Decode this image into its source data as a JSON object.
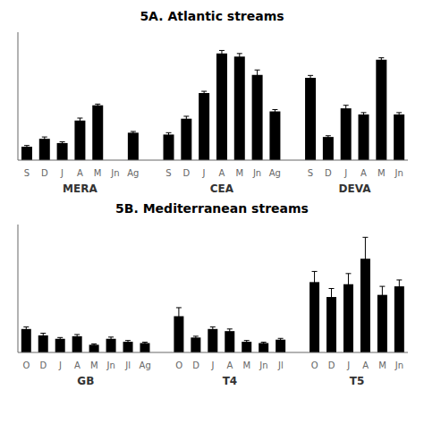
{
  "chart_data": [
    {
      "type": "bar",
      "title": "5A. Atlantic streams",
      "groups": [
        {
          "name": "MERA",
          "categories": [
            "S",
            "D",
            "J",
            "A",
            "M",
            "Jn",
            "Ag"
          ],
          "values": [
            2.2,
            3.5,
            2.8,
            6.5,
            9.0,
            0.0,
            4.5
          ],
          "errors": [
            0.2,
            0.3,
            0.2,
            0.4,
            0.2,
            0.0,
            0.2
          ]
        },
        {
          "name": "CEA",
          "categories": [
            "S",
            "D",
            "J",
            "A",
            "M",
            "Jn",
            "Ag"
          ],
          "values": [
            4.2,
            6.8,
            11.0,
            17.5,
            17.0,
            14.0,
            8.0
          ],
          "errors": [
            0.3,
            0.4,
            0.3,
            0.5,
            0.5,
            0.8,
            0.3
          ]
        },
        {
          "name": "DEVA",
          "categories": [
            "S",
            "D",
            "J",
            "A",
            "M",
            "Jn"
          ],
          "values": [
            13.5,
            3.8,
            8.5,
            7.5,
            16.5,
            7.5
          ],
          "errors": [
            0.4,
            0.2,
            0.5,
            0.3,
            0.3,
            0.3
          ]
        }
      ],
      "color": "#000000",
      "ylim": [
        0,
        21
      ],
      "tick_labels": "x"
    },
    {
      "type": "bar",
      "title": "5B. Mediterranean streams",
      "groups": [
        {
          "name": "GB",
          "categories": [
            "O",
            "D",
            "J",
            "A",
            "M",
            "Jn",
            "Jl",
            "Ag"
          ],
          "values": [
            5.5,
            4.0,
            3.2,
            3.8,
            1.8,
            3.2,
            2.5,
            2.2
          ],
          "errors": [
            0.5,
            0.5,
            0.3,
            0.4,
            0.2,
            0.4,
            0.3,
            0.2
          ]
        },
        {
          "name": "T4",
          "categories": [
            "O",
            "D",
            "J",
            "A",
            "M",
            "Jn",
            "Jl"
          ],
          "values": [
            8.5,
            3.5,
            5.5,
            5.0,
            2.5,
            2.2,
            3.0
          ],
          "errors": [
            2.0,
            0.3,
            0.5,
            0.5,
            0.3,
            0.2,
            0.3
          ]
        },
        {
          "name": "T5",
          "categories": [
            "O",
            "D",
            "J",
            "A",
            "M",
            "Jn"
          ],
          "values": [
            16.5,
            13.0,
            16.0,
            22.0,
            13.5,
            15.5
          ],
          "errors": [
            2.5,
            2.0,
            2.5,
            5.0,
            2.0,
            1.5
          ]
        }
      ],
      "color": "#000000",
      "ylim": [
        0,
        30
      ],
      "tick_labels": "x"
    }
  ]
}
